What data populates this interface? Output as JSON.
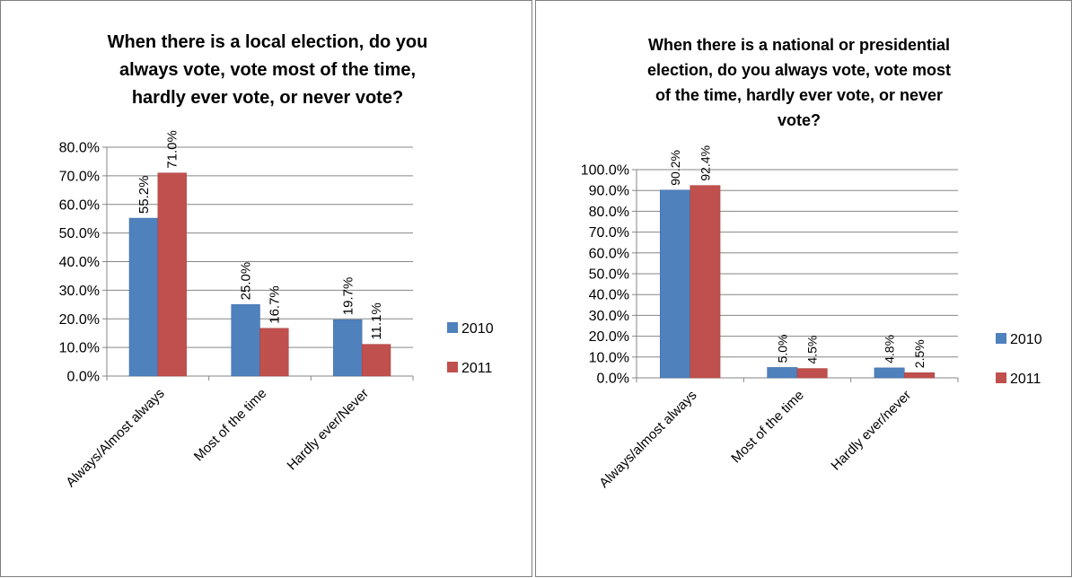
{
  "chart_data": [
    {
      "type": "bar",
      "title": "When there is a local election, do you always vote, vote most of the time, hardly ever vote, or never vote?",
      "title_lines": [
        "When there is a local election, do you",
        "always vote, vote most of the time,",
        "hardly ever vote, or never vote?"
      ],
      "categories": [
        "Always/Almost always",
        "Most of the time",
        "Hardly ever/Never"
      ],
      "series": [
        {
          "name": "2010",
          "values": [
            55.2,
            25.0,
            19.7
          ],
          "labels": [
            "55.2%",
            "25.0%",
            "19.7%"
          ],
          "color": "#4f81bd"
        },
        {
          "name": "2011",
          "values": [
            71.0,
            16.7,
            11.1
          ],
          "labels": [
            "71.0%",
            "16.7%",
            "11.1%"
          ],
          "color": "#c0504d"
        }
      ],
      "ylim": [
        0,
        80
      ],
      "yticks": [
        "0.0%",
        "10.0%",
        "20.0%",
        "30.0%",
        "40.0%",
        "50.0%",
        "60.0%",
        "70.0%",
        "80.0%"
      ],
      "grid": true,
      "legend": "right"
    },
    {
      "type": "bar",
      "title": "When there is a national or presidential election, do you always vote, vote most of the time, hardly ever vote, or never vote?",
      "title_lines": [
        "When there is a national or presidential",
        "election, do you always vote, vote most",
        "of the time, hardly ever vote, or never",
        "vote?"
      ],
      "categories": [
        "Always/almost always",
        "Most of the time",
        "Hardly ever/never"
      ],
      "series": [
        {
          "name": "2010",
          "values": [
            90.2,
            5.0,
            4.8
          ],
          "labels": [
            "90.2%",
            "5.0%",
            "4.8%"
          ],
          "color": "#4f81bd"
        },
        {
          "name": "2011",
          "values": [
            92.4,
            4.5,
            2.5
          ],
          "labels": [
            "92.4%",
            "4.5%",
            "2.5%"
          ],
          "color": "#c0504d"
        }
      ],
      "ylim": [
        0,
        100
      ],
      "yticks": [
        "0.0%",
        "10.0%",
        "20.0%",
        "30.0%",
        "40.0%",
        "50.0%",
        "60.0%",
        "70.0%",
        "80.0%",
        "90.0%",
        "100.0%"
      ],
      "grid": true,
      "legend": "right"
    }
  ]
}
